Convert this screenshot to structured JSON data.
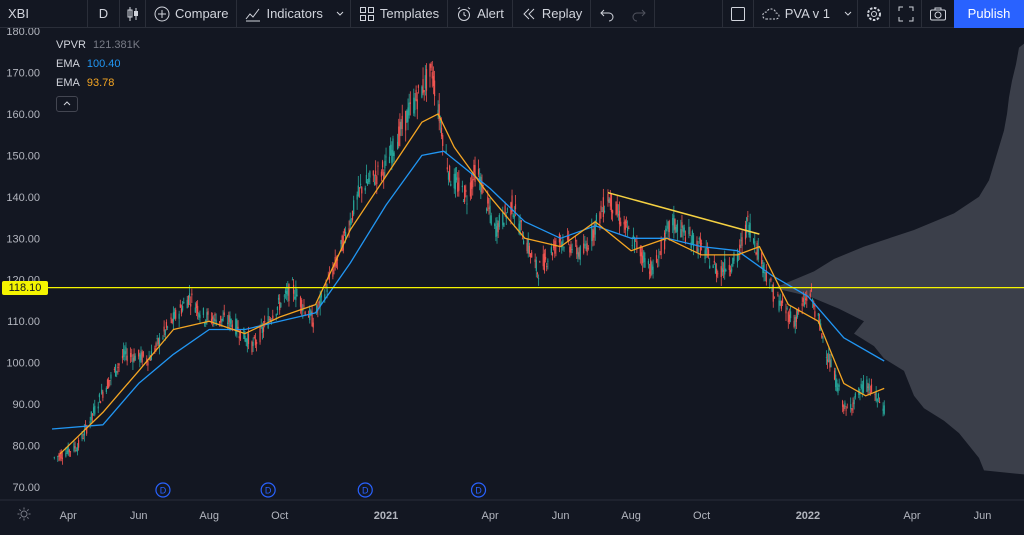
{
  "toolbar": {
    "symbol": "XBI",
    "timeframe": "D",
    "compare_label": "Compare",
    "indicators_label": "Indicators",
    "templates_label": "Templates",
    "alert_label": "Alert",
    "replay_label": "Replay",
    "layout_name": "PVA v 1",
    "publish_label": "Publish"
  },
  "legend": {
    "vpvr": {
      "name": "VPVR",
      "value": "121.381K",
      "color": "#787b86"
    },
    "ema1": {
      "name": "EMA",
      "value": "100.40",
      "color": "#2196f3"
    },
    "ema2": {
      "name": "EMA",
      "value": "93.78",
      "color": "#f5a623"
    }
  },
  "horizontal_line": {
    "price": 118.1,
    "label": "118.10",
    "color": "#f5f500"
  },
  "trend_line": {
    "from": {
      "date": "2021-07-12",
      "price": 141.0
    },
    "to": {
      "date": "2021-11-20",
      "price": 131.0
    },
    "color": "#f5d142"
  },
  "dividend_markers": [
    {
      "date": "2020-06-22",
      "label": "D"
    },
    {
      "date": "2020-09-21",
      "label": "D"
    },
    {
      "date": "2020-12-14",
      "label": "D"
    },
    {
      "date": "2021-03-22",
      "label": "D"
    }
  ],
  "chart_data": {
    "type": "candlestick",
    "y_axis": {
      "min": 70,
      "max": 180,
      "ticks": [
        "180.00",
        "170.00",
        "160.00",
        "150.00",
        "140.00",
        "130.00",
        "120.00",
        "110.00",
        "100.00",
        "90.00",
        "80.00",
        "70.00"
      ]
    },
    "x_axis": {
      "range": [
        "2020-03-18",
        "2022-06-30"
      ],
      "ticks": [
        {
          "date": "2020-04-01",
          "label": "Apr"
        },
        {
          "date": "2020-06-01",
          "label": "Jun"
        },
        {
          "date": "2020-08-01",
          "label": "Aug"
        },
        {
          "date": "2020-10-01",
          "label": "Oct"
        },
        {
          "date": "2021-01-01",
          "label": "2021"
        },
        {
          "date": "2021-04-01",
          "label": "Apr"
        },
        {
          "date": "2021-06-01",
          "label": "Jun"
        },
        {
          "date": "2021-08-01",
          "label": "Aug"
        },
        {
          "date": "2021-10-01",
          "label": "Oct"
        },
        {
          "date": "2022-01-01",
          "label": "2022"
        },
        {
          "date": "2022-04-01",
          "label": "Apr"
        },
        {
          "date": "2022-06-01",
          "label": "Jun"
        }
      ]
    },
    "price_path": [
      [
        "2020-03-20",
        77
      ],
      [
        "2020-04-10",
        80
      ],
      [
        "2020-05-01",
        93
      ],
      [
        "2020-05-20",
        102
      ],
      [
        "2020-06-10",
        101
      ],
      [
        "2020-06-25",
        108
      ],
      [
        "2020-07-15",
        116
      ],
      [
        "2020-07-28",
        111
      ],
      [
        "2020-08-20",
        110
      ],
      [
        "2020-09-08",
        104
      ],
      [
        "2020-09-25",
        112
      ],
      [
        "2020-10-12",
        118
      ],
      [
        "2020-10-30",
        110
      ],
      [
        "2020-11-20",
        125
      ],
      [
        "2020-12-10",
        142
      ],
      [
        "2020-12-31",
        147
      ],
      [
        "2021-01-20",
        160
      ],
      [
        "2021-02-05",
        168
      ],
      [
        "2021-02-10",
        170
      ],
      [
        "2021-02-25",
        145
      ],
      [
        "2021-03-12",
        140
      ],
      [
        "2021-03-20",
        147
      ],
      [
        "2021-04-05",
        132
      ],
      [
        "2021-04-20",
        138
      ],
      [
        "2021-05-12",
        122
      ],
      [
        "2021-06-01",
        130
      ],
      [
        "2021-06-20",
        126
      ],
      [
        "2021-07-12",
        140
      ],
      [
        "2021-07-28",
        132
      ],
      [
        "2021-08-20",
        122
      ],
      [
        "2021-09-05",
        134
      ],
      [
        "2021-09-30",
        128
      ],
      [
        "2021-10-15",
        122
      ],
      [
        "2021-11-01",
        125
      ],
      [
        "2021-11-10",
        134
      ],
      [
        "2021-12-03",
        116
      ],
      [
        "2021-12-20",
        110
      ],
      [
        "2022-01-03",
        117
      ],
      [
        "2022-01-20",
        100
      ],
      [
        "2022-02-03",
        88
      ],
      [
        "2022-02-20",
        95
      ],
      [
        "2022-03-08",
        89
      ]
    ],
    "ema_fast": [
      [
        "2020-03-25",
        78
      ],
      [
        "2020-05-01",
        88
      ],
      [
        "2020-06-01",
        98
      ],
      [
        "2020-07-01",
        108
      ],
      [
        "2020-08-01",
        110
      ],
      [
        "2020-09-01",
        107
      ],
      [
        "2020-10-01",
        111
      ],
      [
        "2020-11-01",
        114
      ],
      [
        "2020-12-01",
        132
      ],
      [
        "2021-01-01",
        145
      ],
      [
        "2021-02-01",
        158
      ],
      [
        "2021-02-15",
        160
      ],
      [
        "2021-03-01",
        152
      ],
      [
        "2021-04-01",
        140
      ],
      [
        "2021-05-01",
        130
      ],
      [
        "2021-06-01",
        128
      ],
      [
        "2021-07-01",
        134
      ],
      [
        "2021-08-01",
        127
      ],
      [
        "2021-09-01",
        130
      ],
      [
        "2021-10-01",
        126
      ],
      [
        "2021-11-01",
        126
      ],
      [
        "2021-11-20",
        128
      ],
      [
        "2021-12-15",
        114
      ],
      [
        "2022-01-10",
        110
      ],
      [
        "2022-02-01",
        95
      ],
      [
        "2022-02-20",
        92
      ],
      [
        "2022-03-08",
        93.78
      ]
    ],
    "ema_slow": [
      [
        "2020-03-18",
        84
      ],
      [
        "2020-05-01",
        85
      ],
      [
        "2020-06-01",
        95
      ],
      [
        "2020-07-01",
        102
      ],
      [
        "2020-08-01",
        108
      ],
      [
        "2020-09-01",
        108
      ],
      [
        "2020-10-01",
        110
      ],
      [
        "2020-11-01",
        112
      ],
      [
        "2020-12-01",
        124
      ],
      [
        "2021-01-01",
        138
      ],
      [
        "2021-02-01",
        150
      ],
      [
        "2021-02-20",
        151
      ],
      [
        "2021-04-01",
        142
      ],
      [
        "2021-05-01",
        134
      ],
      [
        "2021-06-01",
        130
      ],
      [
        "2021-07-01",
        133
      ],
      [
        "2021-08-01",
        130
      ],
      [
        "2021-09-01",
        130
      ],
      [
        "2021-10-01",
        128
      ],
      [
        "2021-11-01",
        127
      ],
      [
        "2021-12-01",
        121
      ],
      [
        "2022-01-01",
        116
      ],
      [
        "2022-02-01",
        106
      ],
      [
        "2022-03-08",
        100.4
      ]
    ],
    "volume_profile": [
      [
        176,
        5
      ],
      [
        172,
        8
      ],
      [
        168,
        12
      ],
      [
        164,
        15
      ],
      [
        160,
        17
      ],
      [
        156,
        20
      ],
      [
        152,
        25
      ],
      [
        148,
        30
      ],
      [
        144,
        35
      ],
      [
        140,
        45
      ],
      [
        136,
        70
      ],
      [
        132,
        110
      ],
      [
        128,
        160
      ],
      [
        125,
        190
      ],
      [
        122,
        210
      ],
      [
        120,
        230
      ],
      [
        118,
        250
      ],
      [
        116,
        215
      ],
      [
        113,
        185
      ],
      [
        110,
        160
      ],
      [
        107,
        170
      ],
      [
        104,
        150
      ],
      [
        101,
        140
      ],
      [
        98,
        120
      ],
      [
        95,
        115
      ],
      [
        92,
        110
      ],
      [
        89,
        100
      ],
      [
        86,
        80
      ],
      [
        83,
        65
      ],
      [
        80,
        55
      ],
      [
        77,
        45
      ],
      [
        74,
        40
      ]
    ]
  }
}
